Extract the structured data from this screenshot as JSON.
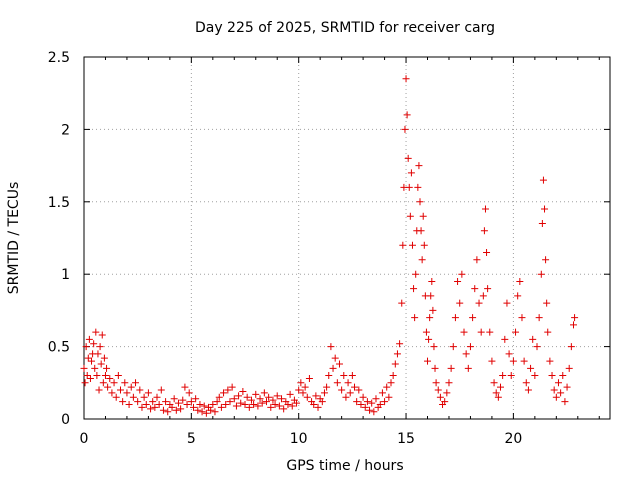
{
  "chart_data": {
    "type": "scatter",
    "title": "Day 225 of 2025, SRMTID for receiver carg",
    "xlabel": "GPS time / hours",
    "ylabel": "SRMTID / TECUs",
    "xlim": [
      0,
      24.5
    ],
    "ylim": [
      0,
      2.5
    ],
    "xticks": [
      0,
      5,
      10,
      15,
      20
    ],
    "xtick_labels": [
      "0",
      "5",
      "10",
      "15",
      "20"
    ],
    "yticks": [
      0,
      0.5,
      1,
      1.5,
      2,
      2.5
    ],
    "ytick_labels": [
      "0",
      "0.5",
      "1",
      "1.5",
      "2",
      "2.5"
    ],
    "grid": true,
    "marker": "+",
    "series": [
      {
        "name": "SRMTID",
        "color": "#e00000",
        "points": [
          [
            0.0,
            0.35
          ],
          [
            0.05,
            0.25
          ],
          [
            0.1,
            0.5
          ],
          [
            0.15,
            0.3
          ],
          [
            0.2,
            0.42
          ],
          [
            0.25,
            0.55
          ],
          [
            0.3,
            0.28
          ],
          [
            0.35,
            0.4
          ],
          [
            0.4,
            0.45
          ],
          [
            0.45,
            0.52
          ],
          [
            0.5,
            0.35
          ],
          [
            0.55,
            0.6
          ],
          [
            0.6,
            0.3
          ],
          [
            0.65,
            0.45
          ],
          [
            0.7,
            0.2
          ],
          [
            0.75,
            0.5
          ],
          [
            0.8,
            0.38
          ],
          [
            0.85,
            0.58
          ],
          [
            0.9,
            0.25
          ],
          [
            0.95,
            0.42
          ],
          [
            1.0,
            0.3
          ],
          [
            1.05,
            0.35
          ],
          [
            1.1,
            0.22
          ],
          [
            1.2,
            0.28
          ],
          [
            1.3,
            0.18
          ],
          [
            1.4,
            0.25
          ],
          [
            1.5,
            0.15
          ],
          [
            1.6,
            0.3
          ],
          [
            1.7,
            0.2
          ],
          [
            1.8,
            0.12
          ],
          [
            1.9,
            0.25
          ],
          [
            2.0,
            0.18
          ],
          [
            2.1,
            0.1
          ],
          [
            2.2,
            0.22
          ],
          [
            2.3,
            0.15
          ],
          [
            2.4,
            0.25
          ],
          [
            2.5,
            0.12
          ],
          [
            2.6,
            0.2
          ],
          [
            2.7,
            0.08
          ],
          [
            2.8,
            0.15
          ],
          [
            2.9,
            0.1
          ],
          [
            3.0,
            0.18
          ],
          [
            3.1,
            0.07
          ],
          [
            3.2,
            0.12
          ],
          [
            3.3,
            0.08
          ],
          [
            3.4,
            0.15
          ],
          [
            3.5,
            0.1
          ],
          [
            3.6,
            0.2
          ],
          [
            3.7,
            0.06
          ],
          [
            3.8,
            0.12
          ],
          [
            3.9,
            0.05
          ],
          [
            4.0,
            0.1
          ],
          [
            4.1,
            0.08
          ],
          [
            4.2,
            0.14
          ],
          [
            4.3,
            0.06
          ],
          [
            4.4,
            0.11
          ],
          [
            4.5,
            0.07
          ],
          [
            4.6,
            0.13
          ],
          [
            4.7,
            0.22
          ],
          [
            4.8,
            0.1
          ],
          [
            4.9,
            0.18
          ],
          [
            5.0,
            0.12
          ],
          [
            5.1,
            0.08
          ],
          [
            5.2,
            0.14
          ],
          [
            5.3,
            0.06
          ],
          [
            5.4,
            0.1
          ],
          [
            5.5,
            0.05
          ],
          [
            5.6,
            0.09
          ],
          [
            5.7,
            0.04
          ],
          [
            5.8,
            0.08
          ],
          [
            5.9,
            0.06
          ],
          [
            6.0,
            0.1
          ],
          [
            6.1,
            0.05
          ],
          [
            6.2,
            0.12
          ],
          [
            6.3,
            0.15
          ],
          [
            6.4,
            0.08
          ],
          [
            6.5,
            0.18
          ],
          [
            6.6,
            0.1
          ],
          [
            6.7,
            0.2
          ],
          [
            6.8,
            0.12
          ],
          [
            6.9,
            0.22
          ],
          [
            7.0,
            0.14
          ],
          [
            7.1,
            0.09
          ],
          [
            7.2,
            0.16
          ],
          [
            7.3,
            0.11
          ],
          [
            7.4,
            0.19
          ],
          [
            7.5,
            0.1
          ],
          [
            7.6,
            0.15
          ],
          [
            7.7,
            0.08
          ],
          [
            7.8,
            0.13
          ],
          [
            7.9,
            0.1
          ],
          [
            8.0,
            0.17
          ],
          [
            8.1,
            0.09
          ],
          [
            8.2,
            0.14
          ],
          [
            8.3,
            0.11
          ],
          [
            8.4,
            0.18
          ],
          [
            8.5,
            0.12
          ],
          [
            8.6,
            0.15
          ],
          [
            8.7,
            0.08
          ],
          [
            8.8,
            0.13
          ],
          [
            8.9,
            0.1
          ],
          [
            9.0,
            0.16
          ],
          [
            9.1,
            0.09
          ],
          [
            9.2,
            0.14
          ],
          [
            9.3,
            0.07
          ],
          [
            9.4,
            0.12
          ],
          [
            9.5,
            0.1
          ],
          [
            9.6,
            0.17
          ],
          [
            9.7,
            0.09
          ],
          [
            9.8,
            0.13
          ],
          [
            9.9,
            0.11
          ],
          [
            10.0,
            0.2
          ],
          [
            10.1,
            0.25
          ],
          [
            10.2,
            0.18
          ],
          [
            10.3,
            0.22
          ],
          [
            10.4,
            0.15
          ],
          [
            10.5,
            0.28
          ],
          [
            10.6,
            0.12
          ],
          [
            10.7,
            0.1
          ],
          [
            10.8,
            0.16
          ],
          [
            10.9,
            0.08
          ],
          [
            11.0,
            0.14
          ],
          [
            11.1,
            0.12
          ],
          [
            11.2,
            0.18
          ],
          [
            11.3,
            0.22
          ],
          [
            11.4,
            0.3
          ],
          [
            11.5,
            0.5
          ],
          [
            11.6,
            0.35
          ],
          [
            11.7,
            0.42
          ],
          [
            11.8,
            0.25
          ],
          [
            11.9,
            0.38
          ],
          [
            12.0,
            0.2
          ],
          [
            12.1,
            0.3
          ],
          [
            12.2,
            0.15
          ],
          [
            12.3,
            0.25
          ],
          [
            12.4,
            0.18
          ],
          [
            12.5,
            0.3
          ],
          [
            12.6,
            0.22
          ],
          [
            12.7,
            0.12
          ],
          [
            12.8,
            0.2
          ],
          [
            12.9,
            0.1
          ],
          [
            13.0,
            0.15
          ],
          [
            13.1,
            0.08
          ],
          [
            13.2,
            0.12
          ],
          [
            13.3,
            0.06
          ],
          [
            13.4,
            0.11
          ],
          [
            13.5,
            0.05
          ],
          [
            13.6,
            0.14
          ],
          [
            13.7,
            0.08
          ],
          [
            13.8,
            0.1
          ],
          [
            13.9,
            0.18
          ],
          [
            14.0,
            0.12
          ],
          [
            14.1,
            0.22
          ],
          [
            14.2,
            0.15
          ],
          [
            14.3,
            0.25
          ],
          [
            14.4,
            0.3
          ],
          [
            14.5,
            0.38
          ],
          [
            14.6,
            0.45
          ],
          [
            14.7,
            0.52
          ],
          [
            14.8,
            0.8
          ],
          [
            14.85,
            1.2
          ],
          [
            14.9,
            1.6
          ],
          [
            14.95,
            2.0
          ],
          [
            15.0,
            2.35
          ],
          [
            15.05,
            2.1
          ],
          [
            15.1,
            1.8
          ],
          [
            15.15,
            1.6
          ],
          [
            15.2,
            1.4
          ],
          [
            15.25,
            1.7
          ],
          [
            15.3,
            1.2
          ],
          [
            15.35,
            0.9
          ],
          [
            15.4,
            0.7
          ],
          [
            15.45,
            1.0
          ],
          [
            15.5,
            1.3
          ],
          [
            15.55,
            1.6
          ],
          [
            15.6,
            1.75
          ],
          [
            15.65,
            1.5
          ],
          [
            15.7,
            1.3
          ],
          [
            15.75,
            1.1
          ],
          [
            15.8,
            1.4
          ],
          [
            15.85,
            1.2
          ],
          [
            15.9,
            0.85
          ],
          [
            15.95,
            0.6
          ],
          [
            16.0,
            0.4
          ],
          [
            16.05,
            0.55
          ],
          [
            16.1,
            0.7
          ],
          [
            16.15,
            0.85
          ],
          [
            16.2,
            0.95
          ],
          [
            16.25,
            0.75
          ],
          [
            16.3,
            0.5
          ],
          [
            16.35,
            0.35
          ],
          [
            16.4,
            0.25
          ],
          [
            16.5,
            0.2
          ],
          [
            16.6,
            0.15
          ],
          [
            16.7,
            0.1
          ],
          [
            16.8,
            0.12
          ],
          [
            16.9,
            0.18
          ],
          [
            17.0,
            0.25
          ],
          [
            17.1,
            0.35
          ],
          [
            17.2,
            0.5
          ],
          [
            17.3,
            0.7
          ],
          [
            17.4,
            0.95
          ],
          [
            17.5,
            0.8
          ],
          [
            17.6,
            1.0
          ],
          [
            17.7,
            0.6
          ],
          [
            17.8,
            0.45
          ],
          [
            17.9,
            0.35
          ],
          [
            18.0,
            0.5
          ],
          [
            18.1,
            0.7
          ],
          [
            18.2,
            0.9
          ],
          [
            18.3,
            1.1
          ],
          [
            18.4,
            0.8
          ],
          [
            18.5,
            0.6
          ],
          [
            18.6,
            0.85
          ],
          [
            18.65,
            1.3
          ],
          [
            18.7,
            1.45
          ],
          [
            18.75,
            1.15
          ],
          [
            18.8,
            0.9
          ],
          [
            18.9,
            0.6
          ],
          [
            19.0,
            0.4
          ],
          [
            19.1,
            0.25
          ],
          [
            19.2,
            0.18
          ],
          [
            19.3,
            0.15
          ],
          [
            19.4,
            0.22
          ],
          [
            19.5,
            0.3
          ],
          [
            19.6,
            0.55
          ],
          [
            19.7,
            0.8
          ],
          [
            19.8,
            0.45
          ],
          [
            19.9,
            0.3
          ],
          [
            20.0,
            0.4
          ],
          [
            20.1,
            0.6
          ],
          [
            20.2,
            0.85
          ],
          [
            20.3,
            0.95
          ],
          [
            20.4,
            0.7
          ],
          [
            20.5,
            0.4
          ],
          [
            20.6,
            0.25
          ],
          [
            20.7,
            0.2
          ],
          [
            20.8,
            0.35
          ],
          [
            20.9,
            0.55
          ],
          [
            21.0,
            0.3
          ],
          [
            21.1,
            0.5
          ],
          [
            21.2,
            0.7
          ],
          [
            21.3,
            1.0
          ],
          [
            21.35,
            1.35
          ],
          [
            21.4,
            1.65
          ],
          [
            21.45,
            1.45
          ],
          [
            21.5,
            1.1
          ],
          [
            21.55,
            0.8
          ],
          [
            21.6,
            0.6
          ],
          [
            21.7,
            0.4
          ],
          [
            21.8,
            0.3
          ],
          [
            21.9,
            0.2
          ],
          [
            22.0,
            0.15
          ],
          [
            22.1,
            0.25
          ],
          [
            22.2,
            0.18
          ],
          [
            22.3,
            0.3
          ],
          [
            22.4,
            0.12
          ],
          [
            22.5,
            0.22
          ],
          [
            22.6,
            0.35
          ],
          [
            22.7,
            0.5
          ],
          [
            22.8,
            0.65
          ],
          [
            22.85,
            0.7
          ]
        ]
      }
    ]
  }
}
